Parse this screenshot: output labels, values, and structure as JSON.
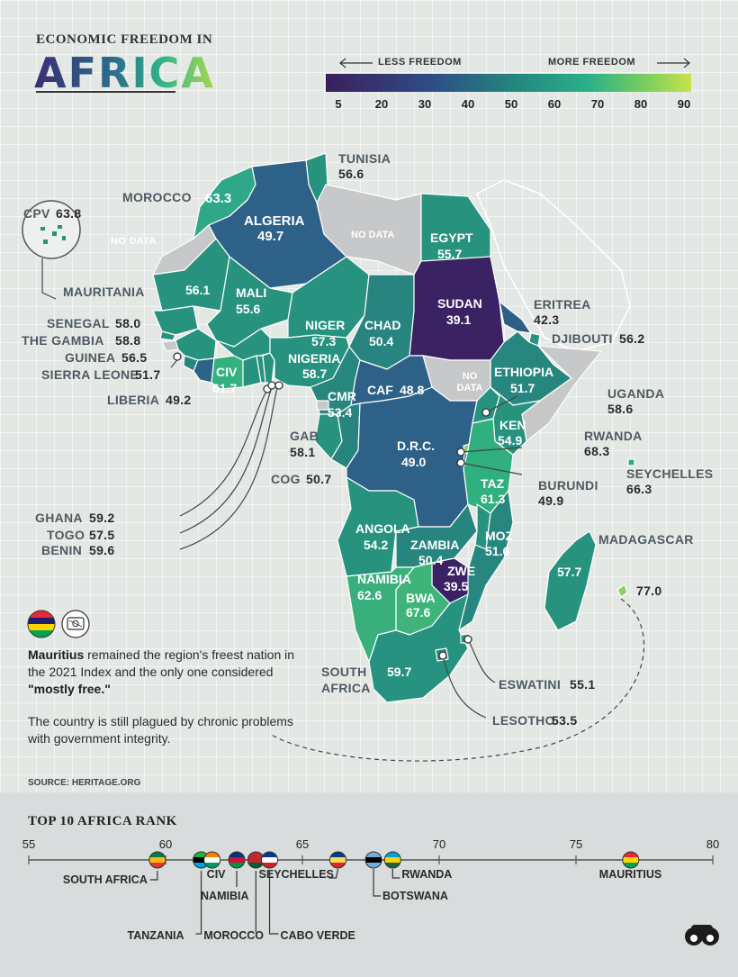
{
  "header": {
    "title_small": "ECONOMIC FREEDOM IN",
    "title_big": "AFRICA"
  },
  "legend": {
    "less": "LESS FREEDOM",
    "more": "MORE FREEDOM",
    "ticks": [
      "5",
      "20",
      "30",
      "40",
      "50",
      "60",
      "70",
      "80",
      "90"
    ],
    "colors": [
      "#3a1f5d",
      "#2e4f86",
      "#24877e",
      "#2bb08a",
      "#7dcf5c",
      "#c8e24a"
    ]
  },
  "map": {
    "no_data": "NO DATA",
    "countries": {
      "morocco": {
        "name": "MOROCCO",
        "score": "63.3"
      },
      "tunisia": {
        "name": "TUNISIA",
        "score": "56.6"
      },
      "algeria": {
        "name": "ALGERIA",
        "score": "49.7"
      },
      "egypt": {
        "name": "EGYPT",
        "score": "55.7"
      },
      "cpv": {
        "name": "CPV",
        "score": "63.8"
      },
      "mauritania": {
        "name": "MAURITANIA",
        "score": "56.1"
      },
      "mali": {
        "name": "MALI",
        "score": "55.6"
      },
      "niger": {
        "name": "NIGER",
        "score": "57.3"
      },
      "chad": {
        "name": "CHAD",
        "score": "50.4"
      },
      "sudan": {
        "name": "SUDAN",
        "score": "39.1"
      },
      "eritrea": {
        "name": "ERITREA",
        "score": "42.3"
      },
      "djibouti": {
        "name": "DJIBOUTI",
        "score": "56.2"
      },
      "senegal": {
        "name": "SENEGAL",
        "score": "58.0"
      },
      "gambia": {
        "name": "THE GAMBIA",
        "score": "58.8"
      },
      "guinea": {
        "name": "GUINEA",
        "score": "56.5"
      },
      "sierra_leone": {
        "name": "SIERRA LEONE",
        "score": "51.7"
      },
      "liberia": {
        "name": "LIBERIA",
        "score": "49.2"
      },
      "civ": {
        "name": "CIV",
        "score": "61.7"
      },
      "nigeria": {
        "name": "NIGERIA",
        "score": "58.7"
      },
      "cmr": {
        "name": "CMR",
        "score": "53.4"
      },
      "caf": {
        "name": "CAF",
        "score": "48.8"
      },
      "ethiopia": {
        "name": "ETHIOPIA",
        "score": "51.7"
      },
      "uganda": {
        "name": "UGANDA",
        "score": "58.6"
      },
      "ken": {
        "name": "KEN",
        "score": "54.9"
      },
      "rwanda": {
        "name": "RWANDA",
        "score": "68.3"
      },
      "burundi": {
        "name": "BURUNDI",
        "score": "49.9"
      },
      "seychelles": {
        "name": "SEYCHELLES",
        "score": "66.3"
      },
      "gab": {
        "name": "GAB",
        "score": "58.1"
      },
      "cog": {
        "name": "COG",
        "score": "50.7"
      },
      "drc": {
        "name": "D.R.C.",
        "score": "49.0"
      },
      "taz": {
        "name": "TAZ",
        "score": "61.3"
      },
      "ghana": {
        "name": "GHANA",
        "score": "59.2"
      },
      "togo": {
        "name": "TOGO",
        "score": "57.5"
      },
      "benin": {
        "name": "BENIN",
        "score": "59.6"
      },
      "angola": {
        "name": "ANGOLA",
        "score": "54.2"
      },
      "zambia": {
        "name": "ZAMBIA",
        "score": "50.4"
      },
      "moz": {
        "name": "MOZ",
        "score": "51.6"
      },
      "madagascar": {
        "name": "MADAGASCAR",
        "score": "57.7"
      },
      "mauritius": {
        "name": "",
        "score": "77.0"
      },
      "namibia": {
        "name": "NAMIBIA",
        "score": "62.6"
      },
      "zwe": {
        "name": "ZWE",
        "score": "39.5"
      },
      "bwa": {
        "name": "BWA",
        "score": "67.6"
      },
      "south_africa": {
        "name_line1": "SOUTH",
        "name_line2": "AFRICA",
        "score": "59.7"
      },
      "eswatini": {
        "name": "ESWATINI",
        "score": "55.1"
      },
      "lesotho": {
        "name": "LESOTHO",
        "score": "53.5"
      }
    }
  },
  "note": {
    "bold1": "Mauritius",
    "text1": " remained the region's freest nation in the 2021 Index and the only one considered ",
    "bold2": "\"mostly free.\"",
    "text2": "The country is still plagued by chronic problems with government integrity."
  },
  "source": "SOURCE: HERITAGE.ORG",
  "rank": {
    "title": "TOP 10 AFRICA RANK",
    "axis_ticks": [
      "55",
      "60",
      "65",
      "70",
      "75",
      "80"
    ],
    "axis_range": [
      55,
      80
    ],
    "countries": [
      {
        "name": "SOUTH AFRICA",
        "score": 59.7
      },
      {
        "name": "TANZANIA",
        "score": 61.3
      },
      {
        "name": "CIV",
        "score": 61.7
      },
      {
        "name": "NAMIBIA",
        "score": 62.6
      },
      {
        "name": "MOROCCO",
        "score": 63.3
      },
      {
        "name": "CABO VERDE",
        "score": 63.8
      },
      {
        "name": "SEYCHELLES",
        "score": 66.3
      },
      {
        "name": "BOTSWANA",
        "score": 67.6
      },
      {
        "name": "RWANDA",
        "score": 68.3
      },
      {
        "name": "MAURITIUS",
        "score": 77.0
      }
    ]
  }
}
